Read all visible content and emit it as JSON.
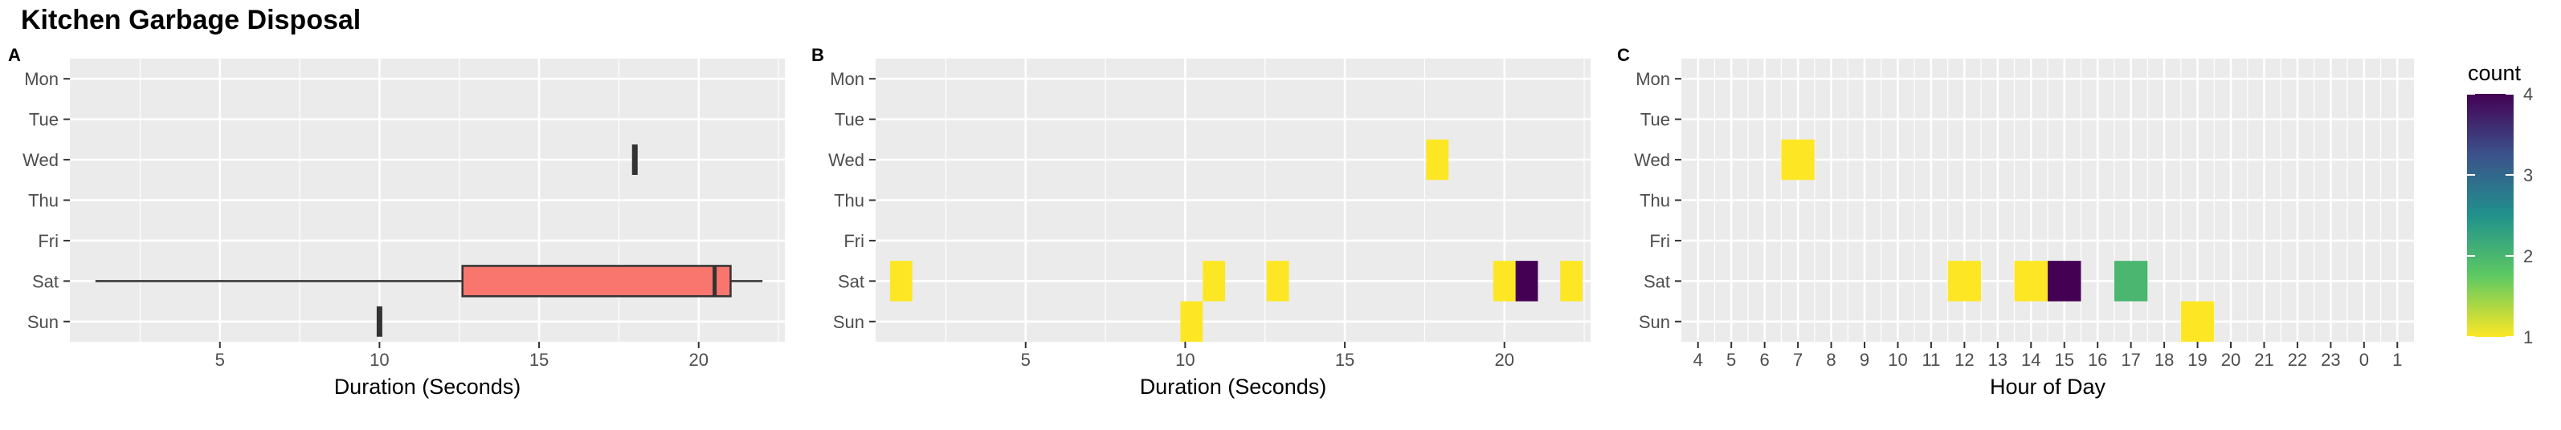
{
  "title": "Kitchen Garbage Disposal",
  "legend": {
    "title": "count",
    "ticks": [
      1,
      2,
      3,
      4
    ],
    "range": [
      1,
      4
    ],
    "colors": [
      "#FDE725",
      "#5EC962",
      "#21918C",
      "#3B528B",
      "#440154"
    ]
  },
  "chart_data": [
    {
      "panel": "A",
      "type": "boxplot",
      "xlabel": "Duration (Seconds)",
      "ylabel": "",
      "categories": [
        "Mon",
        "Tue",
        "Wed",
        "Thu",
        "Fri",
        "Sat",
        "Sun"
      ],
      "xlim": [
        0.3,
        22.7
      ],
      "xticks": [
        5,
        10,
        15,
        20
      ],
      "fill": "#F8766D",
      "boxes": [
        {
          "day": "Wed",
          "min": 18,
          "q1": 18,
          "median": 18,
          "q3": 18,
          "max": 18
        },
        {
          "day": "Sat",
          "min": 1.1,
          "q1": 12.6,
          "median": 20.5,
          "q3": 21.0,
          "max": 22.0
        },
        {
          "day": "Sun",
          "min": 10,
          "q1": 10,
          "median": 10,
          "q3": 10,
          "max": 10
        }
      ]
    },
    {
      "panel": "B",
      "type": "heatmap",
      "xlabel": "Duration (Seconds)",
      "ylabel": "",
      "categories": [
        "Mon",
        "Tue",
        "Wed",
        "Thu",
        "Fri",
        "Sat",
        "Sun"
      ],
      "xlim": [
        0.3,
        22.7
      ],
      "xticks": [
        5,
        10,
        15,
        20
      ],
      "tile_width": 0.7,
      "cells": [
        {
          "day": "Wed",
          "x": 17.9,
          "count": 1
        },
        {
          "day": "Sat",
          "x": 1.1,
          "count": 1
        },
        {
          "day": "Sat",
          "x": 10.9,
          "count": 1
        },
        {
          "day": "Sat",
          "x": 12.9,
          "count": 1
        },
        {
          "day": "Sat",
          "x": 20.0,
          "count": 1
        },
        {
          "day": "Sat",
          "x": 20.7,
          "count": 4
        },
        {
          "day": "Sat",
          "x": 22.1,
          "count": 1
        },
        {
          "day": "Sun",
          "x": 10.2,
          "count": 1
        }
      ]
    },
    {
      "panel": "C",
      "type": "heatmap",
      "xlabel": "Hour of Day",
      "ylabel": "",
      "categories": [
        "Mon",
        "Tue",
        "Wed",
        "Thu",
        "Fri",
        "Sat",
        "Sun"
      ],
      "xcategories": [
        "4",
        "5",
        "6",
        "7",
        "8",
        "9",
        "10",
        "11",
        "12",
        "13",
        "14",
        "15",
        "16",
        "17",
        "18",
        "19",
        "20",
        "21",
        "22",
        "23",
        "0",
        "1"
      ],
      "cells": [
        {
          "day": "Wed",
          "hour": "7",
          "count": 1
        },
        {
          "day": "Sat",
          "hour": "12",
          "count": 1
        },
        {
          "day": "Sat",
          "hour": "14",
          "count": 1
        },
        {
          "day": "Sat",
          "hour": "15",
          "count": 4
        },
        {
          "day": "Sat",
          "hour": "17",
          "count": 2
        },
        {
          "day": "Sun",
          "hour": "19",
          "count": 1
        }
      ]
    }
  ]
}
